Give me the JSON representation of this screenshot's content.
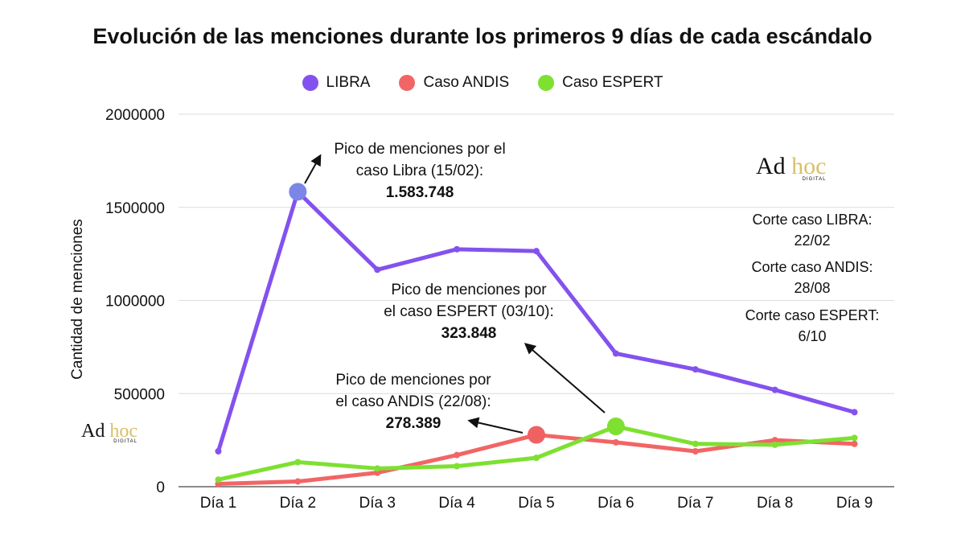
{
  "chart_data": {
    "type": "line",
    "title": "Evolución de las menciones durante los primeros 9 días de cada escándalo",
    "xlabel": "",
    "ylabel": "Cantidad de menciones",
    "categories": [
      "Día 1",
      "Día 2",
      "Día 3",
      "Día 4",
      "Día 5",
      "Día 6",
      "Día 7",
      "Día 8",
      "Día 9"
    ],
    "ylim": [
      0,
      2000000
    ],
    "yticks": [
      "0",
      "500000",
      "1000000",
      "1500000",
      "2000000"
    ],
    "ytick_values": [
      0,
      500000,
      1000000,
      1500000,
      2000000
    ],
    "grid": true,
    "legend_position": "top-center",
    "series": [
      {
        "name": "LIBRA",
        "color": "#8352ee",
        "values": [
          190000,
          1583748,
          1165000,
          1275000,
          1265000,
          715000,
          630000,
          520000,
          400000
        ],
        "peak_index": 1,
        "peak_color": "#7c86e6"
      },
      {
        "name": "Caso ANDIS",
        "color": "#f26565",
        "values": [
          15000,
          28000,
          75000,
          170000,
          278389,
          238000,
          190000,
          250000,
          230000
        ],
        "peak_index": 4,
        "peak_color": "#f06262"
      },
      {
        "name": "Caso ESPERT",
        "color": "#7ee031",
        "values": [
          38000,
          132000,
          98000,
          110000,
          155000,
          323848,
          230000,
          225000,
          262000
        ],
        "peak_index": 5,
        "peak_color": "#7ee031"
      }
    ],
    "annotations": [
      {
        "lines": [
          "Pico de menciones por el",
          "caso Libra (15/02):"
        ],
        "value": "1.583.748"
      },
      {
        "lines": [
          "Pico de menciones por",
          "el caso ESPERT (03/10):"
        ],
        "value": "323.848"
      },
      {
        "lines": [
          "Pico de menciones por",
          "el caso ANDIS (22/08):"
        ],
        "value": "278.389"
      }
    ],
    "cutoffs": [
      {
        "label": "Corte caso LIBRA:",
        "date": "22/02"
      },
      {
        "label": "Corte caso ANDIS:",
        "date": "28/08"
      },
      {
        "label": "Corte caso ESPERT:",
        "date": "6/10"
      }
    ]
  },
  "logo": {
    "main": "Ad",
    "accent": "hoc",
    "sub": "DIGITAL"
  }
}
